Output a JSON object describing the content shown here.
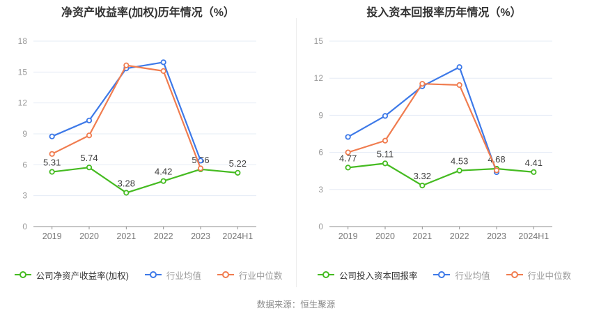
{
  "page": {
    "source_note": "数据来源：恒生聚源"
  },
  "chart_data": [
    {
      "type": "line",
      "title": "净资产收益率(加权)历年情况（%）",
      "categories": [
        "2019",
        "2020",
        "2021",
        "2022",
        "2023",
        "2024H1"
      ],
      "ylim": [
        0,
        18
      ],
      "ytick_step": 3,
      "grid": true,
      "legend_position": "bottom",
      "series": [
        {
          "name": "公司净资产收益率(加权)",
          "color": "#45bb21",
          "show_labels": true,
          "values": [
            5.31,
            5.74,
            3.28,
            4.42,
            5.56,
            5.22
          ]
        },
        {
          "name": "行业均值",
          "color": "#3d79e8",
          "show_labels": false,
          "values": [
            8.75,
            10.3,
            15.35,
            15.95,
            6.4,
            null
          ]
        },
        {
          "name": "行业中位数",
          "color": "#f07c4f",
          "show_labels": false,
          "values": [
            7.05,
            8.85,
            15.65,
            15.1,
            5.65,
            null
          ]
        }
      ]
    },
    {
      "type": "line",
      "title": "投入资本回报率历年情况（%）",
      "categories": [
        "2019",
        "2020",
        "2021",
        "2022",
        "2023",
        "2024H1"
      ],
      "ylim": [
        0,
        15
      ],
      "ytick_step": 3,
      "grid": true,
      "legend_position": "bottom",
      "series": [
        {
          "name": "公司投入资本回报率",
          "color": "#45bb21",
          "show_labels": true,
          "values": [
            4.77,
            5.11,
            3.32,
            4.53,
            4.68,
            4.41
          ]
        },
        {
          "name": "行业均值",
          "color": "#3d79e8",
          "show_labels": false,
          "values": [
            7.25,
            8.95,
            11.35,
            12.9,
            4.4,
            null
          ]
        },
        {
          "name": "行业中位数",
          "color": "#f07c4f",
          "show_labels": false,
          "values": [
            6.0,
            6.95,
            11.55,
            11.45,
            4.55,
            null
          ]
        }
      ]
    }
  ]
}
